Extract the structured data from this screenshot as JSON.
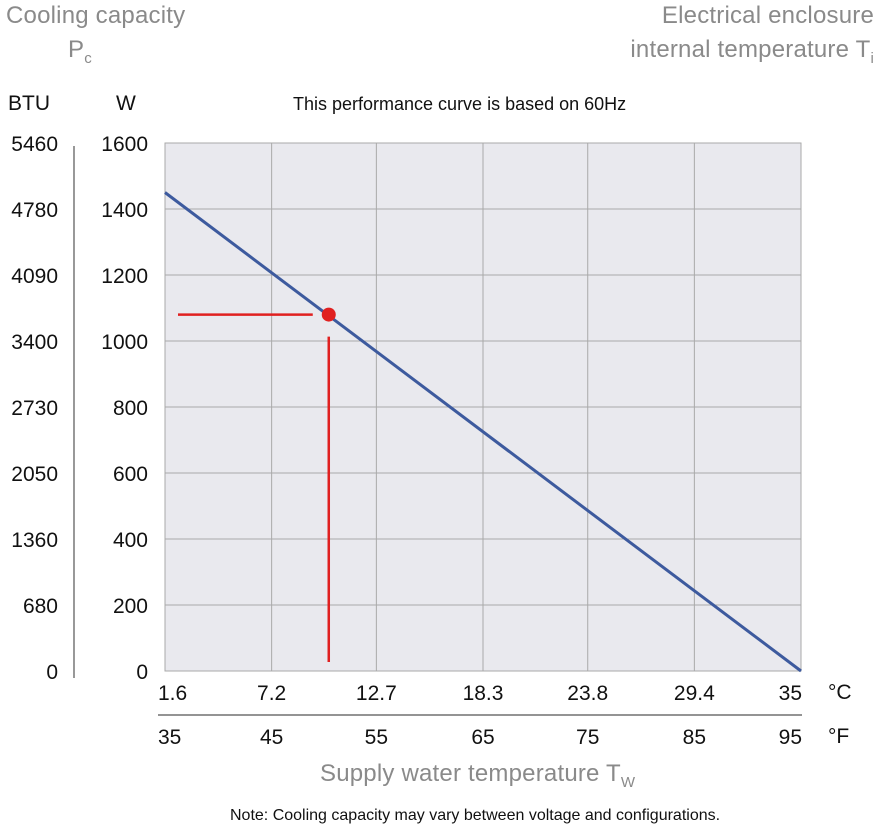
{
  "header": {
    "left_title": "Cooling capacity",
    "left_symbol": "P",
    "left_symbol_sub": "c",
    "right_title_line1": "Electrical enclosure",
    "right_title_line2": "internal temperature T",
    "right_title_sub": "i",
    "unit_btu": "BTU",
    "unit_w": "W",
    "note_top": "This performance curve is based on 60Hz"
  },
  "footer": {
    "xaxis_title": "Supply water temperature T",
    "xaxis_title_sub": "W",
    "unit_c": "°C",
    "unit_f": "°F",
    "note": "Note: Cooling capacity may vary between voltage and configurations."
  },
  "colors": {
    "plot_bg": "#e9e9ee",
    "grid": "#a9a9a9",
    "line": "#3d5a9e",
    "marker": "#e02020"
  },
  "chart_data": {
    "type": "line",
    "title": "This performance curve is based on 60Hz",
    "xlabel": "Supply water temperature Tw",
    "ylabel": "Cooling capacity Pc",
    "xlim": [
      1.6,
      35
    ],
    "ylim": [
      0,
      1600
    ],
    "x_ticks_c": [
      "1.6",
      "7.2",
      "12.7",
      "18.3",
      "23.8",
      "29.4",
      "35"
    ],
    "x_ticks_c_values": [
      1.6,
      7.2,
      12.7,
      18.3,
      23.8,
      29.4,
      35
    ],
    "x_ticks_f": [
      "35",
      "45",
      "55",
      "65",
      "75",
      "85",
      "95"
    ],
    "y_ticks_w": [
      "0",
      "200",
      "400",
      "600",
      "800",
      "1000",
      "1200",
      "1400",
      "1600"
    ],
    "y_ticks_w_values": [
      0,
      200,
      400,
      600,
      800,
      1000,
      1200,
      1400,
      1600
    ],
    "y_ticks_btu": [
      "0",
      "680",
      "1360",
      "2050",
      "2730",
      "3400",
      "4090",
      "4780",
      "5460"
    ],
    "series": [
      {
        "name": "Cooling capacity",
        "x": [
          1.6,
          35
        ],
        "y": [
          1450,
          0
        ]
      }
    ],
    "marker_point": {
      "x": 10.2,
      "y": 1080
    }
  }
}
